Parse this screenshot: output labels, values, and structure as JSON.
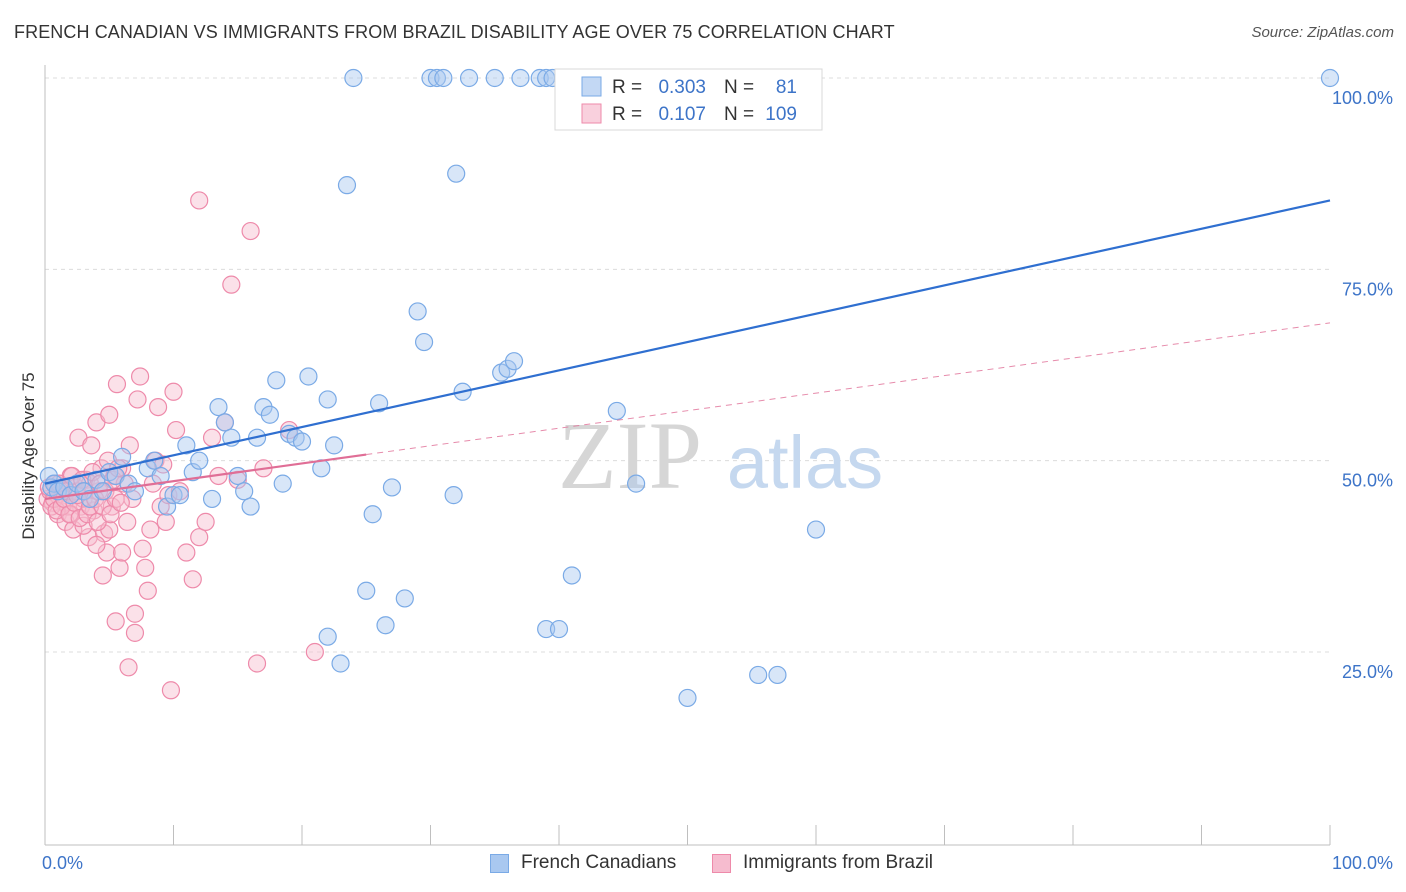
{
  "title": "FRENCH CANADIAN VS IMMIGRANTS FROM BRAZIL DISABILITY AGE OVER 75 CORRELATION CHART",
  "source": "Source: ZipAtlas.com",
  "watermark": {
    "zip": "ZIP",
    "atlas": "atlas"
  },
  "colors": {
    "blue": "#7aaae6",
    "blue_fill": "#a9c8f0",
    "blue_line": "#2f6fd0",
    "pink": "#ee8aaa",
    "pink_fill": "#f6bccf",
    "pink_line": "#e06e96",
    "axis_text": "#3d74c8"
  },
  "legend": {
    "rows": [
      {
        "r_label": "R =",
        "r_value": "0.303",
        "n_label": "N =",
        "n_value": "81"
      },
      {
        "r_label": "R =",
        "r_value": "0.107",
        "n_label": "N =",
        "n_value": "109"
      }
    ]
  },
  "bottom_legend": [
    "French Canadians",
    "Immigrants from Brazil"
  ],
  "chart_data": {
    "type": "scatter",
    "title": "FRENCH CANADIAN VS IMMIGRANTS FROM BRAZIL DISABILITY AGE OVER 75 CORRELATION CHART",
    "xlabel": "",
    "ylabel": "Disability Age Over 75",
    "xlim": [
      0,
      100
    ],
    "ylim": [
      0,
      105
    ],
    "x_tick_labels": [
      "0.0%",
      "100.0%"
    ],
    "y_tick_labels": [
      "25.0%",
      "50.0%",
      "75.0%",
      "100.0%"
    ],
    "y_ticks": [
      25,
      50,
      75,
      100
    ],
    "grid": true,
    "legend_position": "top-center",
    "series": [
      {
        "name": "French Canadians",
        "r": 0.303,
        "n": 81,
        "trend": {
          "x": [
            0,
            100
          ],
          "y": [
            47.0,
            84.0
          ],
          "style": "solid"
        },
        "points": [
          [
            0.3,
            48
          ],
          [
            0.5,
            46.5
          ],
          [
            0.7,
            47
          ],
          [
            1,
            46
          ],
          [
            1.5,
            46.5
          ],
          [
            2,
            45.5
          ],
          [
            2.5,
            47
          ],
          [
            3,
            46
          ],
          [
            3.5,
            45
          ],
          [
            4,
            47.5
          ],
          [
            4.5,
            46
          ],
          [
            5,
            48.5
          ],
          [
            5.5,
            48
          ],
          [
            6,
            50.5
          ],
          [
            6.5,
            47
          ],
          [
            7,
            46
          ],
          [
            8,
            49
          ],
          [
            8.5,
            50
          ],
          [
            9,
            48
          ],
          [
            9.5,
            44
          ],
          [
            10,
            45.5
          ],
          [
            10.5,
            45.5
          ],
          [
            11,
            52
          ],
          [
            11.5,
            48.5
          ],
          [
            12,
            50
          ],
          [
            13,
            45
          ],
          [
            13.5,
            57
          ],
          [
            14,
            55
          ],
          [
            14.5,
            53
          ],
          [
            15,
            48
          ],
          [
            15.5,
            46
          ],
          [
            16,
            44
          ],
          [
            16.5,
            53
          ],
          [
            17,
            57
          ],
          [
            17.5,
            56
          ],
          [
            18,
            60.5
          ],
          [
            18.5,
            47
          ],
          [
            19,
            53.5
          ],
          [
            19.5,
            53
          ],
          [
            20,
            52.5
          ],
          [
            20.5,
            61
          ],
          [
            21.5,
            49
          ],
          [
            22,
            58
          ],
          [
            22.5,
            52
          ],
          [
            23,
            23.5
          ],
          [
            23.5,
            86
          ],
          [
            24,
            100
          ],
          [
            25,
            33
          ],
          [
            25.5,
            43
          ],
          [
            26,
            57.5
          ],
          [
            26.5,
            28.5
          ],
          [
            27,
            46.5
          ],
          [
            28,
            32
          ],
          [
            29,
            69.5
          ],
          [
            29.5,
            65.5
          ],
          [
            30,
            100
          ],
          [
            30.5,
            100
          ],
          [
            31,
            100
          ],
          [
            31.8,
            45.5
          ],
          [
            32,
            87.5
          ],
          [
            32.5,
            59
          ],
          [
            33,
            100
          ],
          [
            35,
            100
          ],
          [
            35.5,
            61.5
          ],
          [
            36,
            62
          ],
          [
            36.5,
            63
          ],
          [
            37,
            100
          ],
          [
            38.5,
            100
          ],
          [
            39,
            100
          ],
          [
            39.5,
            100
          ],
          [
            39,
            28
          ],
          [
            40,
            28
          ],
          [
            41,
            35
          ],
          [
            44.5,
            56.5
          ],
          [
            46,
            47
          ],
          [
            50,
            19
          ],
          [
            55.5,
            22
          ],
          [
            57,
            22
          ],
          [
            60,
            41
          ],
          [
            22,
            27
          ],
          [
            100,
            100
          ]
        ]
      },
      {
        "name": "Immigrants from Brazil",
        "r": 0.107,
        "n": 109,
        "trend": {
          "x": [
            0,
            25
          ],
          "y": [
            45.0,
            50.8
          ],
          "style": "solid",
          "extension": {
            "x": [
              25,
              100
            ],
            "y": [
              50.8,
              68.0
            ],
            "style": "dashed"
          }
        },
        "points": [
          [
            0.2,
            45
          ],
          [
            0.4,
            46
          ],
          [
            0.6,
            44.5
          ],
          [
            0.8,
            47
          ],
          [
            1,
            43
          ],
          [
            1.2,
            46
          ],
          [
            1.4,
            45.5
          ],
          [
            1.6,
            42
          ],
          [
            1.8,
            44
          ],
          [
            2,
            48
          ],
          [
            2.2,
            41
          ],
          [
            2.4,
            46.5
          ],
          [
            2.6,
            53
          ],
          [
            2.8,
            44
          ],
          [
            3,
            45
          ],
          [
            3.2,
            47.5
          ],
          [
            3.4,
            40
          ],
          [
            3.6,
            52
          ],
          [
            3.8,
            43.5
          ],
          [
            4,
            55
          ],
          [
            4.2,
            46
          ],
          [
            4.4,
            49
          ],
          [
            4.6,
            40.5
          ],
          [
            4.8,
            38
          ],
          [
            5,
            56
          ],
          [
            5.2,
            44
          ],
          [
            5.4,
            48
          ],
          [
            5.6,
            60
          ],
          [
            5.8,
            36
          ],
          [
            6,
            49
          ],
          [
            6.2,
            47
          ],
          [
            6.4,
            42
          ],
          [
            6.6,
            52
          ],
          [
            6.8,
            45
          ],
          [
            7,
            30
          ],
          [
            7.2,
            58
          ],
          [
            7.4,
            61
          ],
          [
            7.6,
            38.5
          ],
          [
            7.8,
            36
          ],
          [
            8,
            33
          ],
          [
            8.2,
            41
          ],
          [
            8.4,
            47
          ],
          [
            8.6,
            50
          ],
          [
            8.8,
            57
          ],
          [
            9,
            44
          ],
          [
            9.2,
            49.5
          ],
          [
            9.4,
            42
          ],
          [
            9.6,
            45.5
          ],
          [
            9.8,
            20
          ],
          [
            10,
            59
          ],
          [
            10.2,
            54
          ],
          [
            10.5,
            46
          ],
          [
            11,
            38
          ],
          [
            11.5,
            34.5
          ],
          [
            12,
            40
          ],
          [
            12.5,
            42
          ],
          [
            13,
            53
          ],
          [
            13.5,
            48
          ],
          [
            14,
            55
          ],
          [
            14.5,
            73
          ],
          [
            15,
            47.5
          ],
          [
            16,
            80
          ],
          [
            16.5,
            23.5
          ],
          [
            17,
            49
          ],
          [
            19,
            54
          ],
          [
            21,
            25
          ],
          [
            12,
            84
          ],
          [
            1,
            45.5
          ],
          [
            1.5,
            44.5
          ],
          [
            2,
            43
          ],
          [
            2.5,
            46
          ],
          [
            3,
            41.5
          ],
          [
            3.5,
            47
          ],
          [
            4,
            39
          ],
          [
            4.5,
            35
          ],
          [
            5,
            41
          ],
          [
            5.5,
            29
          ],
          [
            6,
            38
          ],
          [
            6.5,
            23
          ],
          [
            7,
            27.5
          ],
          [
            0.3,
            46.5
          ],
          [
            0.5,
            44
          ],
          [
            0.7,
            45
          ],
          [
            0.9,
            43.5
          ],
          [
            1.1,
            47
          ],
          [
            1.3,
            44
          ],
          [
            1.5,
            45
          ],
          [
            1.7,
            46
          ],
          [
            1.9,
            43
          ],
          [
            2.1,
            48
          ],
          [
            2.3,
            44.5
          ],
          [
            2.5,
            45.5
          ],
          [
            2.7,
            42.5
          ],
          [
            2.9,
            47.5
          ],
          [
            3.1,
            46
          ],
          [
            3.3,
            43
          ],
          [
            3.5,
            44
          ],
          [
            3.7,
            48.5
          ],
          [
            3.9,
            45
          ],
          [
            4.1,
            42
          ],
          [
            4.3,
            47
          ],
          [
            4.5,
            44
          ],
          [
            4.7,
            46
          ],
          [
            4.9,
            50
          ],
          [
            5.1,
            43
          ],
          [
            5.3,
            47.5
          ],
          [
            5.5,
            45
          ],
          [
            5.7,
            49
          ],
          [
            5.9,
            44.5
          ]
        ]
      }
    ]
  }
}
